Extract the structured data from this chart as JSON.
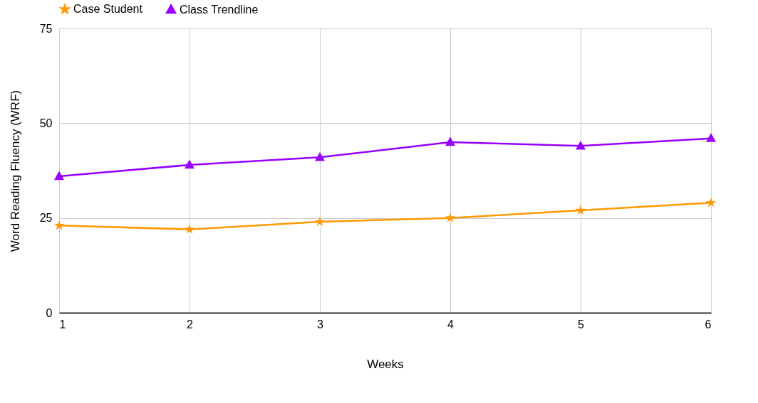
{
  "chart_data": {
    "type": "line",
    "xlabel": "Weeks",
    "ylabel": "Word Reading Fluency (WRF)",
    "x": [
      1,
      2,
      3,
      4,
      5,
      6
    ],
    "series": [
      {
        "name": "Case Student",
        "color": "#ff9900",
        "marker": "star",
        "values": [
          23,
          22,
          24,
          25,
          27,
          29
        ]
      },
      {
        "name": "Class Trendline",
        "color": "#9900ff",
        "marker": "triangle",
        "values": [
          36,
          39,
          41,
          45,
          44,
          46
        ]
      }
    ],
    "xlim": [
      1,
      6
    ],
    "xticks": [
      1,
      2,
      3,
      4,
      5,
      6
    ],
    "ylim": [
      0,
      75
    ],
    "yticks": [
      0,
      25,
      50,
      75
    ],
    "grid": true,
    "legend": "top",
    "line_style": "solid"
  }
}
